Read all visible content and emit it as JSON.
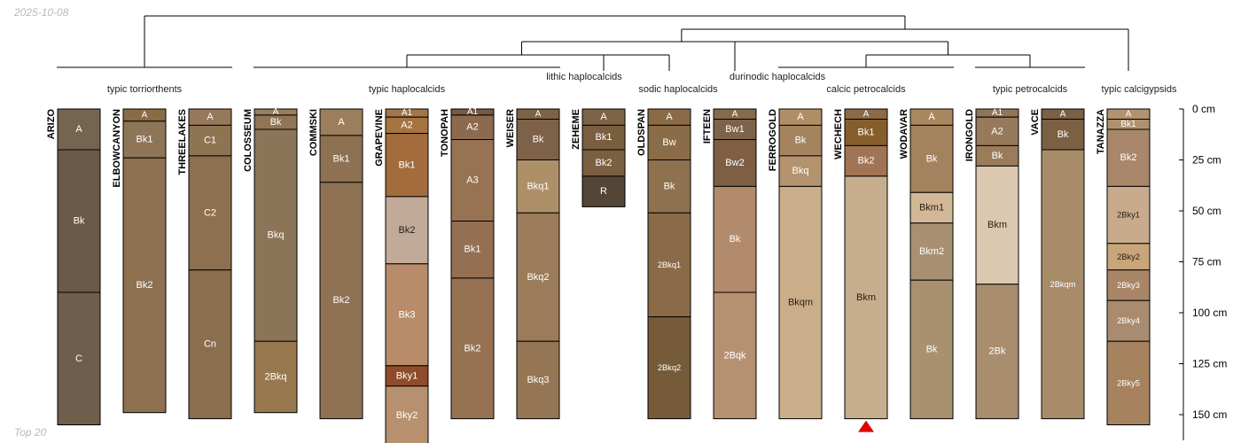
{
  "header": {
    "date": "2025-10-08"
  },
  "footer": {
    "note": "Top 20"
  },
  "axis": {
    "unit": "cm",
    "ticks": [
      {
        "depth": 0,
        "label": "0 cm"
      },
      {
        "depth": 25,
        "label": "25 cm"
      },
      {
        "depth": 50,
        "label": "50 cm"
      },
      {
        "depth": 75,
        "label": "75 cm"
      },
      {
        "depth": 100,
        "label": "100 cm"
      },
      {
        "depth": 125,
        "label": "125 cm"
      },
      {
        "depth": 150,
        "label": "150 cm"
      }
    ]
  },
  "groups": [
    {
      "label": "typic torriorthents",
      "members": [
        "ARIZO",
        "ELBOWCANYON",
        "THREELAKES"
      ]
    },
    {
      "label": "typic haplocalcids",
      "members": [
        "COLOSSEUM",
        "COMMSKI",
        "GRAPEVINE",
        "TONOPAH",
        "WEISER"
      ]
    },
    {
      "label": "lithic haplocalcids",
      "members": [
        "ZEHEME"
      ]
    },
    {
      "label": "sodic haplocalcids",
      "members": [
        "OLDSPAN"
      ]
    },
    {
      "label": "durinodic haplocalcids",
      "members": [
        "IFTEEN"
      ]
    },
    {
      "label": "calcic petrocalcids",
      "members": [
        "FERROGOLD",
        "WECHECH",
        "WODAVAR"
      ]
    },
    {
      "label": "typic petrocalcids",
      "members": [
        "IRONGOLD",
        "VACE"
      ]
    },
    {
      "label": "typic calcigypsids",
      "members": [
        "TANAZZA"
      ]
    }
  ],
  "profiles": [
    {
      "name": "ARIZO",
      "horizons": [
        {
          "name": "A",
          "top": 0,
          "bottom": 20,
          "color": "#756550"
        },
        {
          "name": "Bk",
          "top": 20,
          "bottom": 90,
          "color": "#6a5a47"
        },
        {
          "name": "C",
          "top": 90,
          "bottom": 155,
          "color": "#6e5e4b"
        }
      ]
    },
    {
      "name": "ELBOWCANYON",
      "horizons": [
        {
          "name": "A",
          "top": 0,
          "bottom": 6,
          "color": "#8a6b43"
        },
        {
          "name": "Bk1",
          "top": 6,
          "bottom": 24,
          "color": "#8f7557"
        },
        {
          "name": "Bk2",
          "top": 24,
          "bottom": 149,
          "color": "#8e7150"
        }
      ]
    },
    {
      "name": "THREELAKES",
      "horizons": [
        {
          "name": "A",
          "top": 0,
          "bottom": 8,
          "color": "#96785a"
        },
        {
          "name": "C1",
          "top": 8,
          "bottom": 23,
          "color": "#8f7454"
        },
        {
          "name": "C2",
          "top": 23,
          "bottom": 79,
          "color": "#8c7050"
        },
        {
          "name": "Cn",
          "top": 79,
          "bottom": 152,
          "color": "#8a6e4e"
        }
      ]
    },
    {
      "name": "COLOSSEUM",
      "horizons": [
        {
          "name": "A",
          "top": 0,
          "bottom": 3,
          "color": "#9b7e5f"
        },
        {
          "name": "Bk",
          "top": 3,
          "bottom": 10,
          "color": "#917556"
        },
        {
          "name": "Bkq",
          "top": 10,
          "bottom": 114,
          "color": "#8b7457"
        },
        {
          "name": "2Bkq",
          "top": 114,
          "bottom": 149,
          "color": "#98784f"
        }
      ]
    },
    {
      "name": "COMMSKI",
      "horizons": [
        {
          "name": "A",
          "top": 0,
          "bottom": 13,
          "color": "#9b7e5b"
        },
        {
          "name": "Bk1",
          "top": 13,
          "bottom": 36,
          "color": "#8d7152"
        },
        {
          "name": "Bk2",
          "top": 36,
          "bottom": 152,
          "color": "#8e7253"
        }
      ]
    },
    {
      "name": "GRAPEVINE",
      "horizons": [
        {
          "name": "A1",
          "top": 0,
          "bottom": 4,
          "color": "#a5744a"
        },
        {
          "name": "A2",
          "top": 4,
          "bottom": 12,
          "color": "#a5743f"
        },
        {
          "name": "Bk1",
          "top": 12,
          "bottom": 43,
          "color": "#a36c3c"
        },
        {
          "name": "Bk2",
          "top": 43,
          "bottom": 76,
          "color": "#c1ab98"
        },
        {
          "name": "Bk3",
          "top": 76,
          "bottom": 126,
          "color": "#b88c6b"
        },
        {
          "name": "Bky1",
          "top": 126,
          "bottom": 136,
          "color": "#8f4c2a"
        },
        {
          "name": "Bky2",
          "top": 136,
          "bottom": 165,
          "color": "#b6906f"
        }
      ]
    },
    {
      "name": "TONOPAH",
      "horizons": [
        {
          "name": "A1",
          "top": 0,
          "bottom": 3,
          "color": "#7a5840"
        },
        {
          "name": "A2",
          "top": 3,
          "bottom": 15,
          "color": "#8c6a4f"
        },
        {
          "name": "A3",
          "top": 15,
          "bottom": 55,
          "color": "#977253"
        },
        {
          "name": "Bk1",
          "top": 55,
          "bottom": 83,
          "color": "#946f52"
        },
        {
          "name": "Bk2",
          "top": 83,
          "bottom": 152,
          "color": "#967253"
        }
      ]
    },
    {
      "name": "WEISER",
      "horizons": [
        {
          "name": "A",
          "top": 0,
          "bottom": 5,
          "color": "#7e6246"
        },
        {
          "name": "Bk",
          "top": 5,
          "bottom": 25,
          "color": "#7d6148"
        },
        {
          "name": "Bkq1",
          "top": 25,
          "bottom": 51,
          "color": "#ae9068"
        },
        {
          "name": "Bkq2",
          "top": 51,
          "bottom": 114,
          "color": "#9b7b59"
        },
        {
          "name": "Bkq3",
          "top": 114,
          "bottom": 152,
          "color": "#957654"
        }
      ]
    },
    {
      "name": "ZEHEME",
      "horizons": [
        {
          "name": "A",
          "top": 0,
          "bottom": 8,
          "color": "#7e6346"
        },
        {
          "name": "Bk1",
          "top": 8,
          "bottom": 20,
          "color": "#7a5e40"
        },
        {
          "name": "Bk2",
          "top": 20,
          "bottom": 33,
          "color": "#7b5f41"
        },
        {
          "name": "R",
          "top": 33,
          "bottom": 48,
          "color": "#544536"
        }
      ]
    },
    {
      "name": "OLDSPAN",
      "horizons": [
        {
          "name": "A",
          "top": 0,
          "bottom": 8,
          "color": "#8a6b46"
        },
        {
          "name": "Bw",
          "top": 8,
          "bottom": 25,
          "color": "#8a6d48"
        },
        {
          "name": "Bk",
          "top": 25,
          "bottom": 51,
          "color": "#8e7250"
        },
        {
          "name": "2Bkq1",
          "top": 51,
          "bottom": 102,
          "color": "#8b6b47"
        },
        {
          "name": "2Bkq2",
          "top": 102,
          "bottom": 152,
          "color": "#765b3a"
        }
      ]
    },
    {
      "name": "IFTEEN",
      "horizons": [
        {
          "name": "A",
          "top": 0,
          "bottom": 5,
          "color": "#876a4c"
        },
        {
          "name": "Bw1",
          "top": 5,
          "bottom": 15,
          "color": "#7e6249"
        },
        {
          "name": "Bw2",
          "top": 15,
          "bottom": 38,
          "color": "#7e5f44"
        },
        {
          "name": "Bk",
          "top": 38,
          "bottom": 90,
          "color": "#b18b6c"
        },
        {
          "name": "2Bqk",
          "top": 90,
          "bottom": 152,
          "color": "#b59172"
        }
      ]
    },
    {
      "name": "FERROGOLD",
      "horizons": [
        {
          "name": "A",
          "top": 0,
          "bottom": 8,
          "color": "#b08e66"
        },
        {
          "name": "Bk",
          "top": 8,
          "bottom": 23,
          "color": "#a4845f"
        },
        {
          "name": "Bkq",
          "top": 23,
          "bottom": 38,
          "color": "#b3936d"
        },
        {
          "name": "Bkqm",
          "top": 38,
          "bottom": 152,
          "color": "#caae8a"
        }
      ]
    },
    {
      "name": "WECHECH",
      "horizons": [
        {
          "name": "A",
          "top": 0,
          "bottom": 5,
          "color": "#8a6a48"
        },
        {
          "name": "Bk1",
          "top": 5,
          "bottom": 18,
          "color": "#855e2c"
        },
        {
          "name": "Bk2",
          "top": 18,
          "bottom": 33,
          "color": "#a07454"
        },
        {
          "name": "Bkm",
          "top": 33,
          "bottom": 152,
          "color": "#c6ad8e"
        }
      ]
    },
    {
      "name": "WODAVAR",
      "horizons": [
        {
          "name": "A",
          "top": 0,
          "bottom": 8,
          "color": "#a98860"
        },
        {
          "name": "Bk",
          "top": 8,
          "bottom": 41,
          "color": "#a3835e"
        },
        {
          "name": "Bkm1",
          "top": 41,
          "bottom": 56,
          "color": "#d2b896"
        },
        {
          "name": "Bkm2",
          "top": 56,
          "bottom": 84,
          "color": "#a99072"
        },
        {
          "name": "Bk",
          "top": 84,
          "bottom": 152,
          "color": "#a99170"
        }
      ]
    },
    {
      "name": "IRONGOLD",
      "horizons": [
        {
          "name": "A1",
          "top": 0,
          "bottom": 4,
          "color": "#907659"
        },
        {
          "name": "A2",
          "top": 4,
          "bottom": 18,
          "color": "#97795b"
        },
        {
          "name": "Bk",
          "top": 18,
          "bottom": 28,
          "color": "#9b7b5a"
        },
        {
          "name": "Bkm",
          "top": 28,
          "bottom": 86,
          "color": "#dcc8b0"
        },
        {
          "name": "2Bk",
          "top": 86,
          "bottom": 152,
          "color": "#a88d6f"
        }
      ]
    },
    {
      "name": "VACE",
      "horizons": [
        {
          "name": "A",
          "top": 0,
          "bottom": 5,
          "color": "#7b6044"
        },
        {
          "name": "Bk",
          "top": 5,
          "bottom": 20,
          "color": "#7c6043"
        },
        {
          "name": "2Bkqm",
          "top": 20,
          "bottom": 152,
          "color": "#a88c69"
        }
      ]
    },
    {
      "name": "TANAZZA",
      "horizons": [
        {
          "name": "A",
          "top": 0,
          "bottom": 5,
          "color": "#b2936f"
        },
        {
          "name": "Bk1",
          "top": 5,
          "bottom": 10,
          "color": "#b09070"
        },
        {
          "name": "Bk2",
          "top": 10,
          "bottom": 38,
          "color": "#a8876a"
        },
        {
          "name": "2Bky1",
          "top": 38,
          "bottom": 66,
          "color": "#c7ab8c"
        },
        {
          "name": "2Bky2",
          "top": 66,
          "bottom": 79,
          "color": "#c8a67a"
        },
        {
          "name": "2Bky3",
          "top": 79,
          "bottom": 94,
          "color": "#a98568"
        },
        {
          "name": "2Bky4",
          "top": 94,
          "bottom": 114,
          "color": "#a98c6f"
        },
        {
          "name": "2Bky5",
          "top": 114,
          "bottom": 155,
          "color": "#a6825f"
        }
      ]
    }
  ],
  "truncation_marker": {
    "profile": "WECHECH",
    "color": "#e00000"
  }
}
